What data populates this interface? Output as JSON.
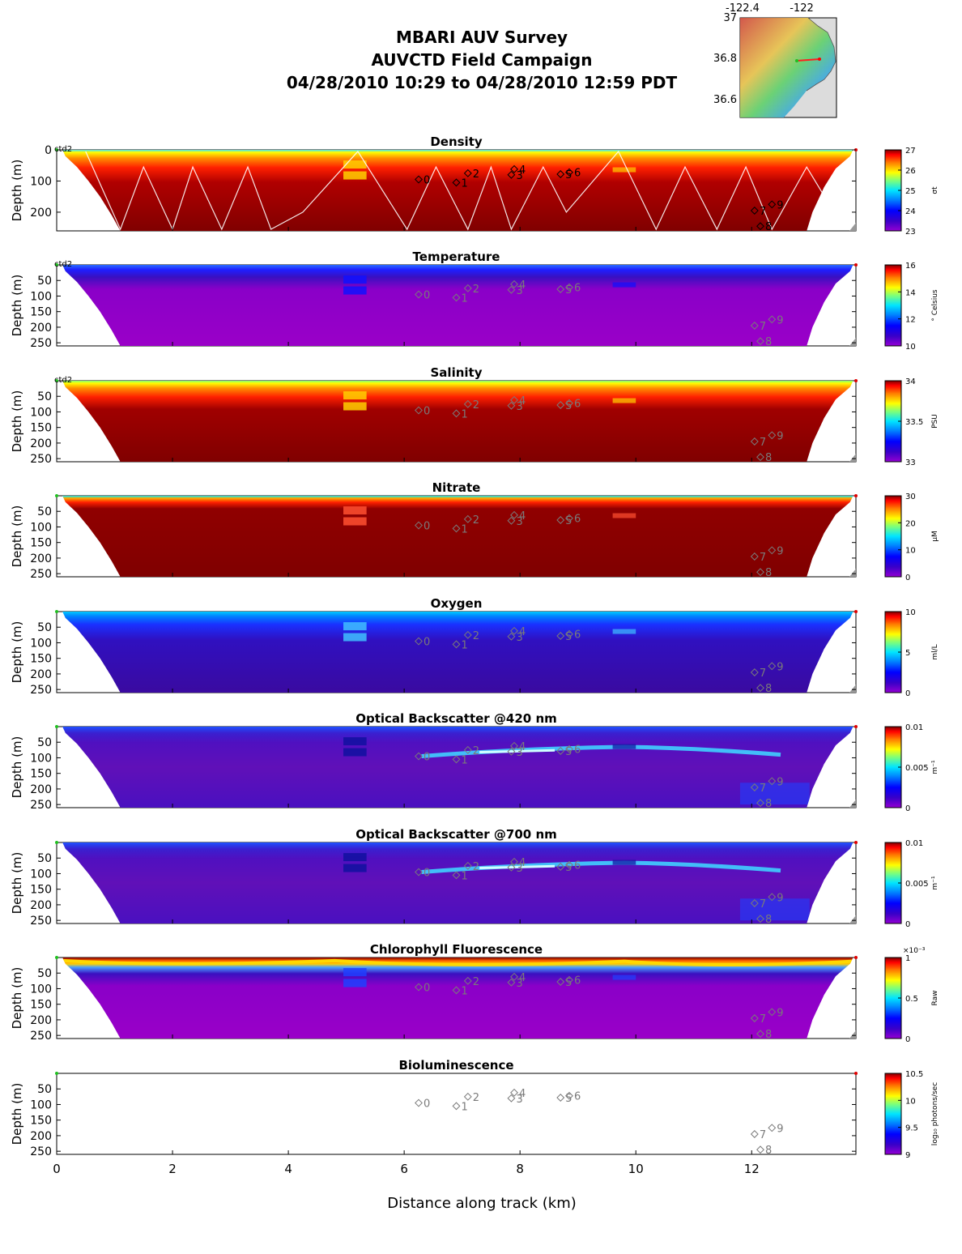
{
  "header": {
    "line1": "MBARI AUV Survey",
    "line2": "AUVCTD Field Campaign",
    "line3": "04/28/2010 10:29  to 04/28/2010 12:59 PDT"
  },
  "inset_map": {
    "lon_ticks": [
      "-122.4",
      "-122"
    ],
    "lat_ticks": [
      "37",
      "36.8",
      "36.6"
    ]
  },
  "chart_data": {
    "type": "heatmap",
    "xlabel": "Distance along track (km)",
    "x_ticks": [
      0,
      2,
      4,
      6,
      8,
      10,
      12
    ],
    "xlim": [
      0,
      13.8
    ],
    "ylabel": "Depth (m)",
    "ylim": [
      0,
      260
    ],
    "cast_label": "ctd2",
    "stations": [
      {
        "label": "0",
        "x": 6.25,
        "depth": 95
      },
      {
        "label": "1",
        "x": 6.9,
        "depth": 105
      },
      {
        "label": "2",
        "x": 7.1,
        "depth": 75
      },
      {
        "label": "3",
        "x": 7.85,
        "depth": 80
      },
      {
        "label": "4",
        "x": 7.9,
        "depth": 62
      },
      {
        "label": "5",
        "x": 8.7,
        "depth": 78
      },
      {
        "label": "6",
        "x": 8.85,
        "depth": 72
      },
      {
        "label": "7",
        "x": 12.05,
        "depth": 195
      },
      {
        "label": "8",
        "x": 12.15,
        "depth": 245
      },
      {
        "label": "9",
        "x": 12.35,
        "depth": 175
      }
    ],
    "panels": [
      {
        "name": "density",
        "title": "Density",
        "y_ticks": [
          0,
          100,
          200
        ],
        "cbar_ticks": [
          "27",
          "26",
          "25",
          "24",
          "23"
        ],
        "units": "σt",
        "profile": "density",
        "has_cast": true,
        "has_track": true
      },
      {
        "name": "temperature",
        "title": "Temperature",
        "y_ticks": [
          50,
          100,
          150,
          200,
          250
        ],
        "cbar_ticks": [
          "16",
          "14",
          "12",
          "10"
        ],
        "units": "° Celsius",
        "profile": "temperature",
        "has_cast": true
      },
      {
        "name": "salinity",
        "title": "Salinity",
        "y_ticks": [
          50,
          100,
          150,
          200,
          250
        ],
        "cbar_ticks": [
          "34",
          "33.5",
          "33"
        ],
        "units": "PSU",
        "profile": "salinity",
        "has_cast": true
      },
      {
        "name": "nitrate",
        "title": "Nitrate",
        "y_ticks": [
          50,
          100,
          150,
          200,
          250
        ],
        "cbar_ticks": [
          "30",
          "20",
          "10",
          "0"
        ],
        "units": "μM",
        "profile": "nitrate"
      },
      {
        "name": "oxygen",
        "title": "Oxygen",
        "y_ticks": [
          50,
          100,
          150,
          200,
          250
        ],
        "cbar_ticks": [
          "10",
          "5",
          "0"
        ],
        "units": "ml/L",
        "profile": "oxygen"
      },
      {
        "name": "backscatter-420",
        "title": "Optical Backscatter @420 nm",
        "y_ticks": [
          50,
          100,
          150,
          200,
          250
        ],
        "cbar_ticks": [
          "0.01",
          "0.005",
          "0"
        ],
        "units": "m⁻¹",
        "profile": "backscatter"
      },
      {
        "name": "backscatter-700",
        "title": "Optical Backscatter @700 nm",
        "y_ticks": [
          50,
          100,
          150,
          200,
          250
        ],
        "cbar_ticks": [
          "0.01",
          "0.005",
          "0"
        ],
        "units": "m⁻¹",
        "profile": "backscatter"
      },
      {
        "name": "chlorophyll",
        "title": "Chlorophyll Fluorescence",
        "y_ticks": [
          50,
          100,
          150,
          200,
          250
        ],
        "cbar_ticks": [
          "1",
          "0.5",
          "0"
        ],
        "units": "Raw",
        "cbar_exponent": "×10⁻³",
        "profile": "chlorophyll"
      },
      {
        "name": "bioluminescence",
        "title": "Bioluminescence",
        "y_ticks": [
          50,
          100,
          150,
          200,
          250
        ],
        "cbar_ticks": [
          "10.5",
          "10",
          "9.5",
          "9"
        ],
        "units": "log₁₀ photons/sec",
        "profile": "empty"
      }
    ]
  }
}
